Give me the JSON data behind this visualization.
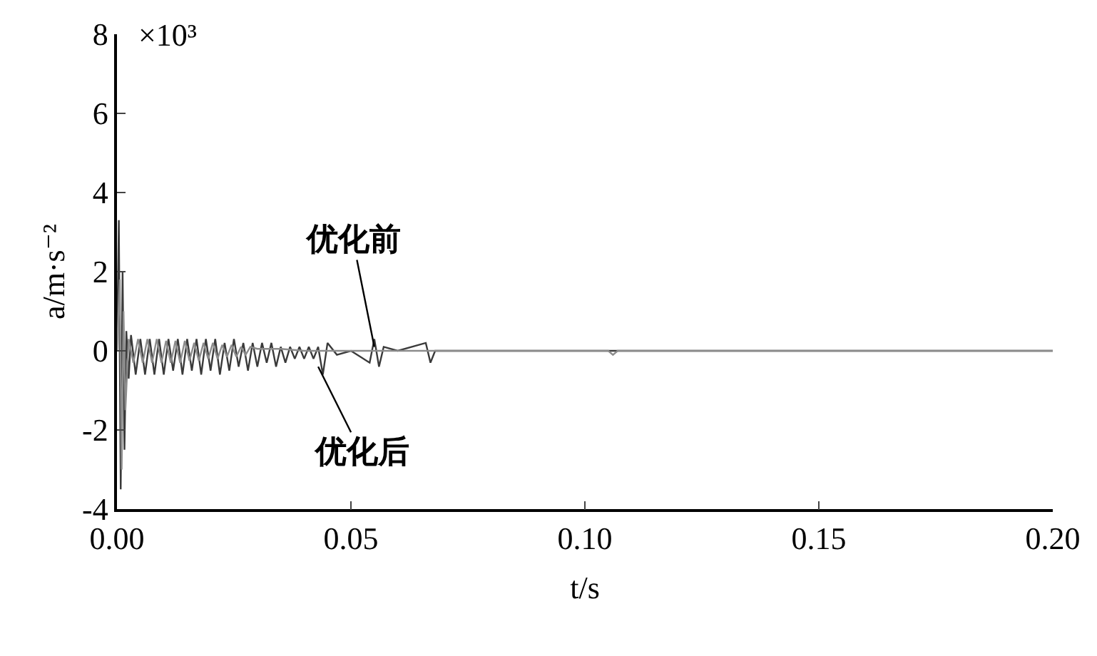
{
  "chart_data": {
    "type": "line",
    "xlabel": "t/s",
    "ylabel": "a/m·s⁻²",
    "annotations": [
      "×10³",
      {
        "text": "优化前",
        "x": 0.055,
        "y": 0.1
      },
      {
        "text": "优化后",
        "x": 0.043,
        "y": -0.4
      }
    ],
    "xlim": [
      0,
      0.2
    ],
    "xticks": [
      {
        "value": 0,
        "label": "0.00"
      },
      {
        "value": 0.05,
        "label": "0.05"
      },
      {
        "value": 0.1,
        "label": "0.10"
      },
      {
        "value": 0.15,
        "label": "0.15"
      },
      {
        "value": 0.2,
        "label": "0.20"
      }
    ],
    "ylim": [
      -4,
      8
    ],
    "yticks": [
      -4,
      -2,
      0,
      2,
      4,
      6,
      8
    ],
    "marker": "none",
    "line_style": "solid",
    "series": [
      {
        "color": "#3a3a3a",
        "x": [
          0,
          0.0004,
          0.0008,
          0.0012,
          0.0016,
          0.002,
          0.0025,
          0.003,
          0.004,
          0.005,
          0.006,
          0.007,
          0.008,
          0.009,
          0.01,
          0.011,
          0.012,
          0.013,
          0.014,
          0.015,
          0.016,
          0.017,
          0.018,
          0.019,
          0.02,
          0.021,
          0.022,
          0.023,
          0.024,
          0.025,
          0.026,
          0.027,
          0.028,
          0.029,
          0.03,
          0.031,
          0.032,
          0.033,
          0.034,
          0.035,
          0.036,
          0.037,
          0.038,
          0.039,
          0.04,
          0.041,
          0.042,
          0.043,
          0.044,
          0.045,
          0.047,
          0.05,
          0.054,
          0.055,
          0.056,
          0.057,
          0.06,
          0.066,
          0.067,
          0.068,
          0.07,
          0.09,
          0.2
        ],
        "values": [
          0,
          3.3,
          -3.5,
          2.0,
          -2.5,
          0.5,
          -0.7,
          0.4,
          -0.6,
          0.3,
          -0.6,
          0.3,
          -0.6,
          0.3,
          -0.6,
          0.3,
          -0.5,
          0.3,
          -0.6,
          0.3,
          -0.5,
          0.3,
          -0.6,
          0.3,
          -0.5,
          0.3,
          -0.6,
          0.2,
          -0.5,
          0.3,
          -0.4,
          0.2,
          -0.5,
          0.2,
          -0.4,
          0.2,
          -0.3,
          0.2,
          -0.4,
          0.1,
          -0.3,
          0.1,
          -0.2,
          0.1,
          -0.2,
          0.1,
          -0.2,
          0.1,
          -0.6,
          0.2,
          -0.1,
          0,
          -0.3,
          0.3,
          -0.4,
          0.1,
          0,
          0.2,
          -0.3,
          0,
          0,
          0,
          0
        ]
      },
      {
        "color": "#8c8c8c",
        "x": [
          0,
          0.0006,
          0.001,
          0.0014,
          0.0018,
          0.0025,
          0.0035,
          0.0045,
          0.0055,
          0.0065,
          0.0075,
          0.0085,
          0.0095,
          0.0105,
          0.0115,
          0.0125,
          0.0135,
          0.0145,
          0.0155,
          0.0165,
          0.0175,
          0.0185,
          0.0195,
          0.0205,
          0.0215,
          0.0225,
          0.0235,
          0.0245,
          0.0255,
          0.0265,
          0.0275,
          0.0285,
          0.03,
          0.035,
          0.04,
          0.05,
          0.08,
          0.105,
          0.106,
          0.107,
          0.2
        ],
        "values": [
          0,
          1.8,
          -3.0,
          1.0,
          -1.5,
          0.3,
          -0.3,
          0.3,
          -0.3,
          0.3,
          -0.3,
          0.3,
          -0.3,
          0.25,
          -0.3,
          0.25,
          -0.3,
          0.25,
          -0.25,
          0.2,
          -0.25,
          0.2,
          -0.2,
          0.2,
          -0.2,
          0.15,
          -0.15,
          0.15,
          -0.15,
          0.1,
          -0.1,
          0.1,
          0.05,
          0.05,
          0,
          0,
          0,
          0,
          -0.1,
          0,
          0
        ]
      }
    ]
  }
}
